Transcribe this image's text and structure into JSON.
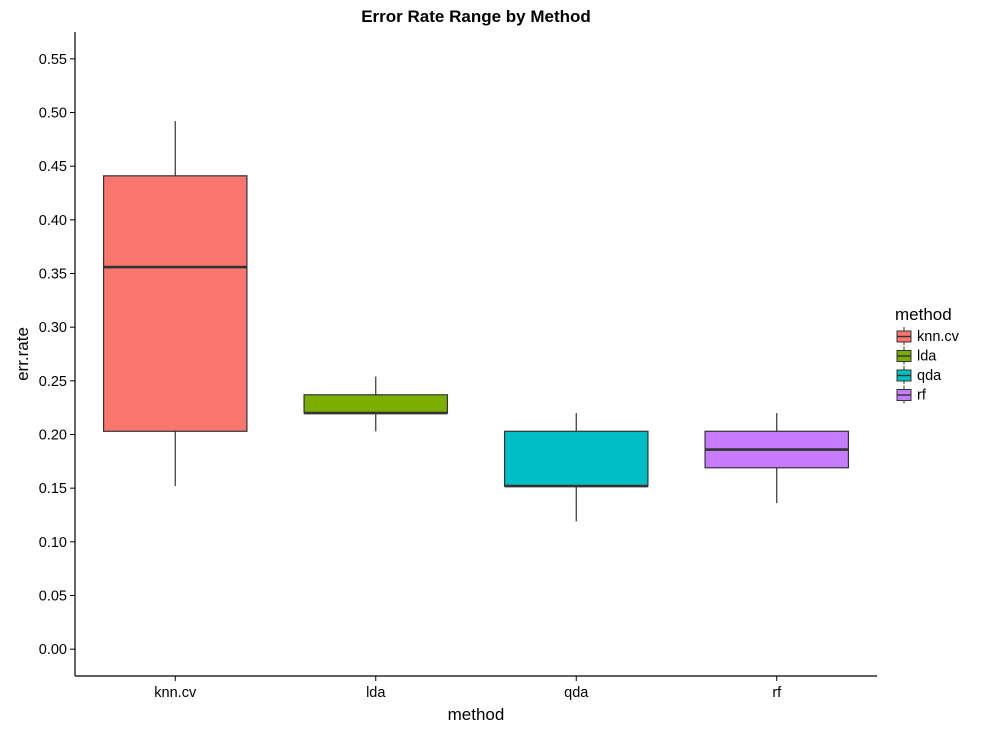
{
  "chart_data": {
    "type": "box",
    "title": "Error Rate Range by Method",
    "xlabel": "method",
    "ylabel": "err.rate",
    "ylim": [
      -0.025,
      0.575
    ],
    "yticks": [
      "0.00",
      "0.05",
      "0.10",
      "0.15",
      "0.20",
      "0.25",
      "0.30",
      "0.35",
      "0.40",
      "0.45",
      "0.50",
      "0.55"
    ],
    "categories": [
      "knn.cv",
      "lda",
      "qda",
      "rf"
    ],
    "boxes": [
      {
        "category": "knn.cv",
        "min": 0.152,
        "q1": 0.203,
        "median": 0.356,
        "q3": 0.441,
        "max": 0.492,
        "color": "#F8766D"
      },
      {
        "category": "lda",
        "min": 0.203,
        "q1": 0.22,
        "median": 0.22,
        "q3": 0.237,
        "max": 0.254,
        "color": "#7CAE00"
      },
      {
        "category": "qda",
        "min": 0.119,
        "q1": 0.152,
        "median": 0.152,
        "q3": 0.203,
        "max": 0.22,
        "color": "#00BFC4"
      },
      {
        "category": "rf",
        "min": 0.136,
        "q1": 0.169,
        "median": 0.186,
        "q3": 0.203,
        "max": 0.22,
        "color": "#C77CFF"
      }
    ],
    "legend": {
      "title": "method",
      "position": "right",
      "entries": [
        "knn.cv",
        "lda",
        "qda",
        "rf"
      ]
    },
    "grid": false
  }
}
